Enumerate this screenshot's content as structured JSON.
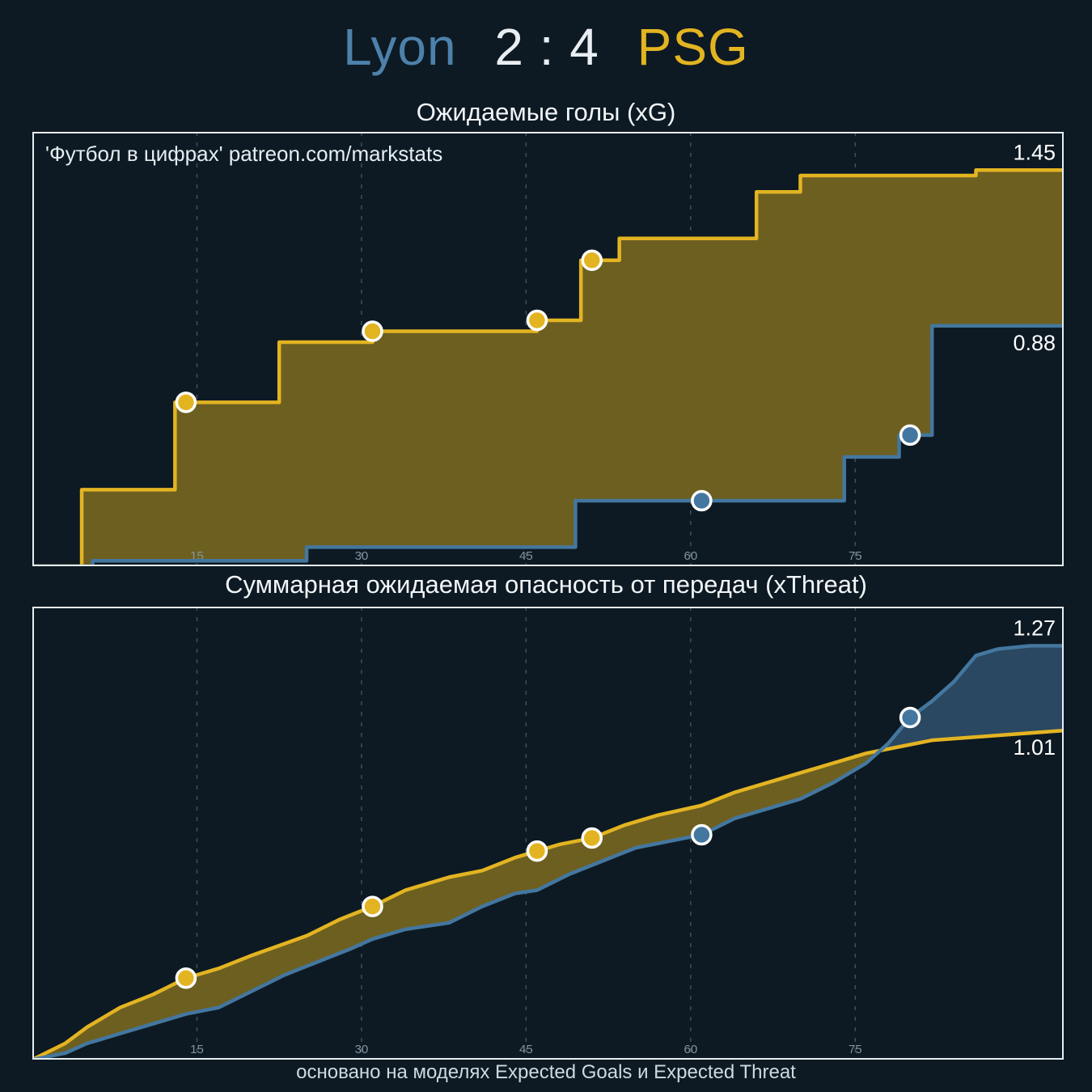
{
  "header": {
    "home_team": "Lyon",
    "score": "2 : 4",
    "away_team": "PSG"
  },
  "watermark": "'Футбол в цифрах' patreon.com/markstats",
  "footer": "основано на моделях Expected Goals и Expected Threat",
  "colors": {
    "background": "#0d1a23",
    "home": "#44779f",
    "away": "#e3b422",
    "home_title": "#4d81ab",
    "score_text": "#e8eef2",
    "grid": "#3f4e58",
    "tick_text": "#8494a0",
    "border": "#e8edf0",
    "marker_stroke": "#ffffff",
    "end_label_text": "#ffffff"
  },
  "chart_data": [
    {
      "type": "area",
      "title": "Ожидаемые голы (xG)",
      "interpolation": "step",
      "x_range": [
        0,
        94
      ],
      "y_range": [
        0,
        1.59
      ],
      "x_ticks": [
        15,
        30,
        45,
        60,
        75
      ],
      "grid": "dashed-vertical",
      "legend": "none",
      "fill_colors": {
        "series0_top": "#6d5f20",
        "series1_top": "#2a4861"
      },
      "series": [
        {
          "name": "PSG",
          "color": "#e3b422",
          "end_label": "1.45",
          "final_value": 1.45,
          "points": [
            [
              0,
              0
            ],
            [
              4.5,
              0.28
            ],
            [
              13,
              0.6
            ],
            [
              22.5,
              0.82
            ],
            [
              31,
              0.86
            ],
            [
              46,
              0.9
            ],
            [
              50,
              1.12
            ],
            [
              53.5,
              1.2
            ],
            [
              66,
              1.37
            ],
            [
              70,
              1.43
            ],
            [
              86,
              1.45
            ]
          ],
          "goal_markers": [
            [
              14,
              0.6
            ],
            [
              31,
              0.86
            ],
            [
              46,
              0.9
            ],
            [
              51,
              1.12
            ]
          ]
        },
        {
          "name": "Lyon",
          "color": "#44779f",
          "end_label": "0.88",
          "final_value": 0.88,
          "points": [
            [
              0,
              0
            ],
            [
              5.5,
              0.02
            ],
            [
              25,
              0.07
            ],
            [
              49.5,
              0.24
            ],
            [
              74,
              0.4
            ],
            [
              79,
              0.48
            ],
            [
              82,
              0.88
            ]
          ],
          "goal_markers": [
            [
              61,
              0.24
            ],
            [
              80,
              0.48
            ]
          ]
        }
      ]
    },
    {
      "type": "area",
      "title": "Суммарная ожидаемая опасность от передач (xThreat)",
      "interpolation": "linear",
      "x_range": [
        0,
        94
      ],
      "y_range": [
        0,
        1.39
      ],
      "x_ticks": [
        15,
        30,
        45,
        60,
        75
      ],
      "grid": "dashed-vertical",
      "legend": "none",
      "fill_colors": {
        "series0_top": "#6d5f20",
        "series1_top": "#2a4861"
      },
      "series": [
        {
          "name": "PSG",
          "color": "#e3b422",
          "end_label": "1.01",
          "final_value": 1.01,
          "points": [
            [
              0,
              0
            ],
            [
              3,
              0.05
            ],
            [
              5,
              0.1
            ],
            [
              8,
              0.16
            ],
            [
              11,
              0.2
            ],
            [
              14,
              0.25
            ],
            [
              17,
              0.28
            ],
            [
              20,
              0.32
            ],
            [
              25,
              0.38
            ],
            [
              28,
              0.43
            ],
            [
              31,
              0.47
            ],
            [
              34,
              0.52
            ],
            [
              38,
              0.56
            ],
            [
              41,
              0.58
            ],
            [
              44,
              0.62
            ],
            [
              46,
              0.64
            ],
            [
              48,
              0.66
            ],
            [
              51,
              0.68
            ],
            [
              54,
              0.72
            ],
            [
              57,
              0.75
            ],
            [
              61,
              0.78
            ],
            [
              64,
              0.82
            ],
            [
              67,
              0.85
            ],
            [
              70,
              0.88
            ],
            [
              73,
              0.91
            ],
            [
              76,
              0.94
            ],
            [
              79,
              0.96
            ],
            [
              82,
              0.98
            ],
            [
              86,
              0.99
            ],
            [
              90,
              1.0
            ],
            [
              94,
              1.01
            ]
          ],
          "goal_markers": [
            [
              14,
              0.25
            ],
            [
              31,
              0.47
            ],
            [
              46,
              0.64
            ],
            [
              51,
              0.68
            ]
          ]
        },
        {
          "name": "Lyon",
          "color": "#44779f",
          "end_label": "1.27",
          "final_value": 1.27,
          "points": [
            [
              0,
              0
            ],
            [
              3,
              0.02
            ],
            [
              5,
              0.05
            ],
            [
              8,
              0.08
            ],
            [
              11,
              0.11
            ],
            [
              14,
              0.14
            ],
            [
              17,
              0.16
            ],
            [
              20,
              0.21
            ],
            [
              23,
              0.26
            ],
            [
              26,
              0.3
            ],
            [
              29,
              0.34
            ],
            [
              31,
              0.37
            ],
            [
              34,
              0.4
            ],
            [
              38,
              0.42
            ],
            [
              41,
              0.47
            ],
            [
              44,
              0.51
            ],
            [
              46,
              0.52
            ],
            [
              49,
              0.57
            ],
            [
              52,
              0.61
            ],
            [
              55,
              0.65
            ],
            [
              58,
              0.67
            ],
            [
              61,
              0.69
            ],
            [
              64,
              0.74
            ],
            [
              67,
              0.77
            ],
            [
              70,
              0.8
            ],
            [
              73,
              0.85
            ],
            [
              76,
              0.91
            ],
            [
              78,
              0.97
            ],
            [
              80,
              1.05
            ],
            [
              82,
              1.1
            ],
            [
              84,
              1.16
            ],
            [
              86,
              1.24
            ],
            [
              88,
              1.26
            ],
            [
              91,
              1.27
            ],
            [
              94,
              1.27
            ]
          ],
          "goal_markers": [
            [
              61,
              0.69
            ],
            [
              80,
              1.05
            ]
          ]
        }
      ]
    }
  ]
}
